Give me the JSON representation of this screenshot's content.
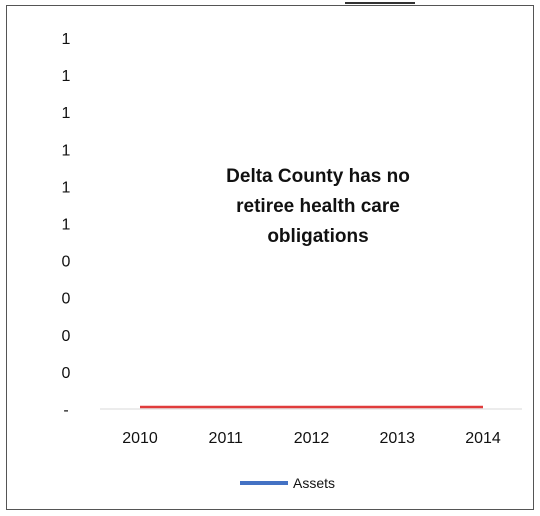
{
  "chart_data": {
    "type": "line",
    "title": "",
    "xlabel": "",
    "ylabel": "",
    "categories": [
      "2010",
      "2011",
      "2012",
      "2013",
      "2014"
    ],
    "y_tick_labels": [
      "1",
      "1",
      "1",
      "1",
      "1",
      "1",
      "0",
      "0",
      "0",
      "0",
      "-"
    ],
    "ylim": [
      0,
      1
    ],
    "series": [
      {
        "name": "Assets",
        "values": [
          0,
          0,
          0,
          0,
          0
        ],
        "color": "#4472C4"
      },
      {
        "name": "",
        "values": [
          0,
          0,
          0,
          0,
          0
        ],
        "color": "#E03C3C"
      }
    ],
    "annotation": [
      "Delta County has no",
      "retiree health care",
      "obligations"
    ],
    "legend_position": "bottom",
    "grid": false
  }
}
